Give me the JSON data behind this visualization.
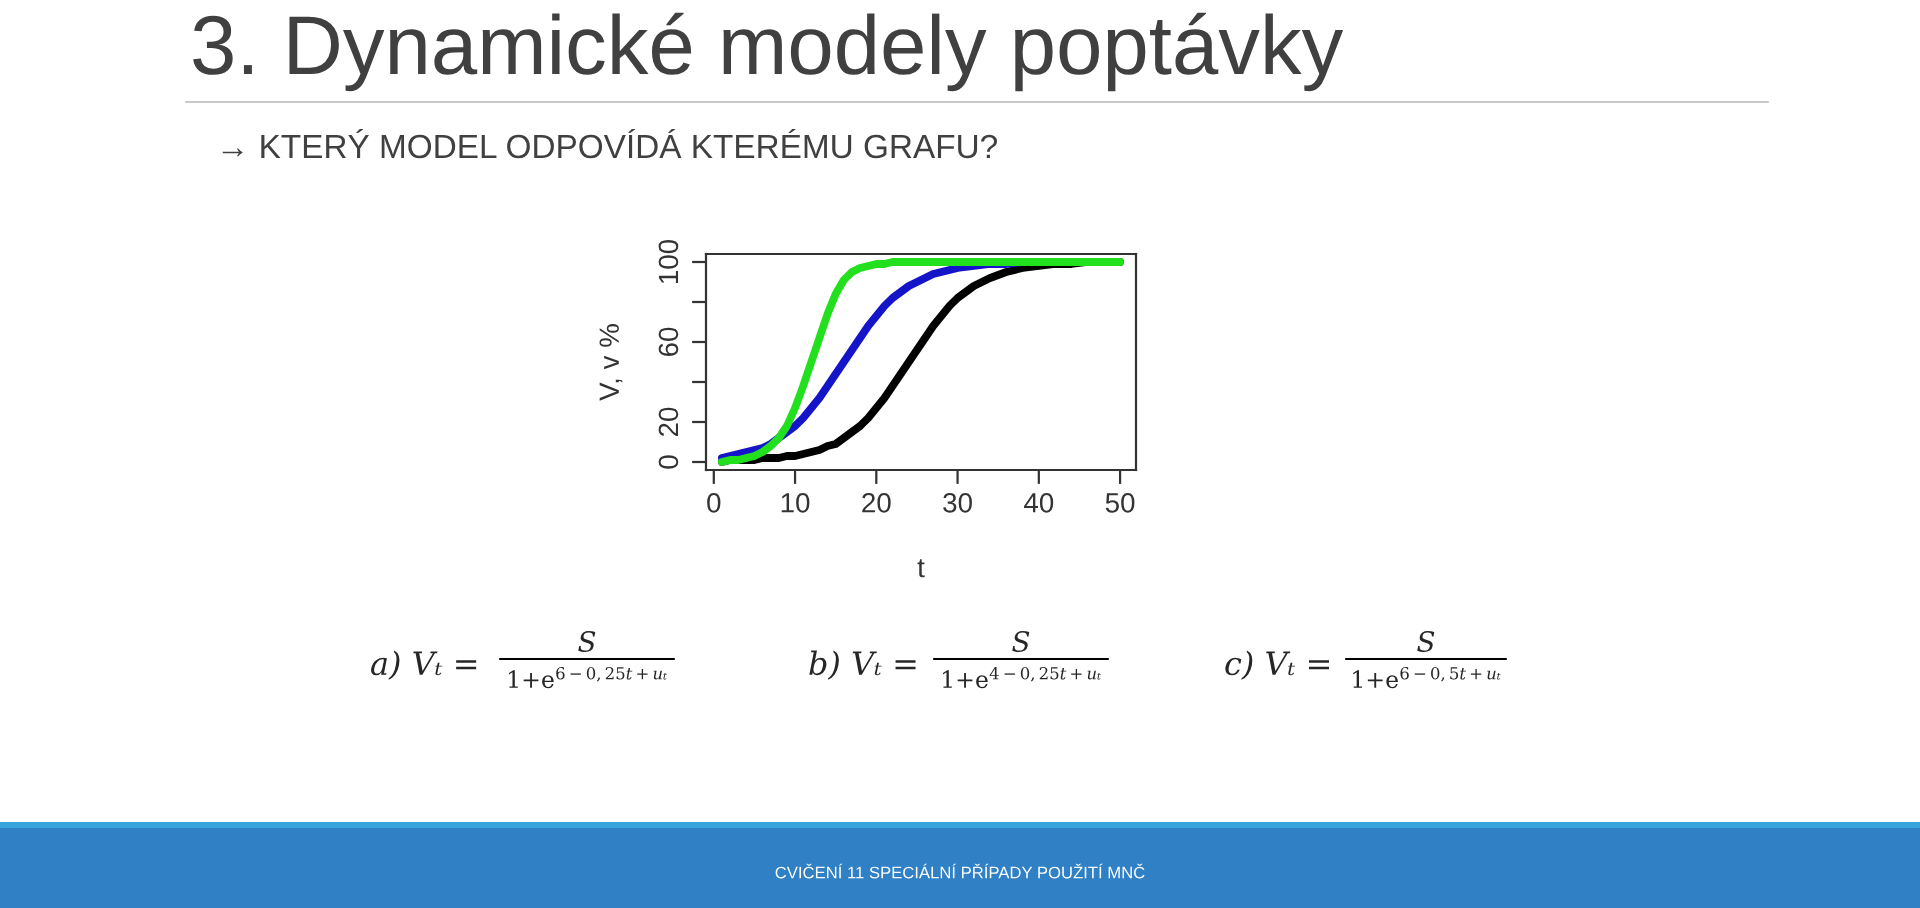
{
  "chart_data": {
    "type": "line",
    "title": "3. Dynamické modely poptávky",
    "subtitle": "→ KTERÝ MODEL ODPOVÍDÁ KTERÉMU GRAFU?",
    "xlabel": "t",
    "ylabel": "V, v %",
    "x": [
      1,
      2,
      3,
      4,
      5,
      6,
      7,
      8,
      9,
      10,
      11,
      12,
      13,
      14,
      15,
      16,
      17,
      18,
      19,
      20,
      21,
      22,
      23,
      24,
      25,
      26,
      27,
      28,
      29,
      30,
      32,
      34,
      36,
      38,
      40,
      42,
      44,
      46,
      48,
      50
    ],
    "series": [
      {
        "color": "#000000",
        "values": [
          0,
          1,
          1,
          1,
          1,
          2,
          2,
          2,
          3,
          3,
          4,
          5,
          6,
          8,
          9,
          12,
          15,
          18,
          22,
          27,
          32,
          38,
          44,
          50,
          56,
          62,
          68,
          73,
          78,
          82,
          88,
          92,
          95,
          97,
          98,
          99,
          99,
          100,
          100,
          100
        ]
      },
      {
        "color": "#1414c8",
        "values": [
          2,
          3,
          4,
          5,
          6,
          7,
          9,
          12,
          15,
          18,
          22,
          27,
          32,
          38,
          44,
          50,
          56,
          62,
          68,
          73,
          78,
          82,
          85,
          88,
          90,
          92,
          94,
          95,
          96,
          97,
          98,
          99,
          99,
          100,
          null,
          null,
          null,
          null,
          null,
          null
        ]
      },
      {
        "color": "#22e01e",
        "values": [
          0,
          1,
          1,
          2,
          3,
          5,
          8,
          12,
          18,
          27,
          38,
          50,
          62,
          74,
          84,
          91,
          95,
          97,
          98,
          99,
          99,
          100,
          100,
          100,
          100,
          100,
          100,
          100,
          100,
          100,
          100,
          100,
          100,
          100,
          100,
          100,
          100,
          100,
          100,
          100
        ]
      }
    ],
    "xlim": [
      -0.96,
      51.96
    ],
    "ylim": [
      -4,
      104
    ],
    "xticks": [
      0,
      10,
      20,
      30,
      40,
      50
    ],
    "yticks": [
      0,
      20,
      {
        "value": 40,
        "label": null
      },
      60,
      {
        "value": 80,
        "label": null
      },
      100
    ],
    "annotations": [
      "a) Vₜ =",
      "S",
      "1+e$^{6−0,25t+uₜ}$",
      "b) Vₜ =",
      "S",
      "1+e$^{4−0,25t+uₜ}$",
      "c) Vₜ =",
      "S",
      "1+e$^{6−0,5t+uₜ}$",
      "CVIČENÍ 11 SPECIÁLNÍ PŘÍPADY POUŽITÍ MNČ"
    ]
  }
}
